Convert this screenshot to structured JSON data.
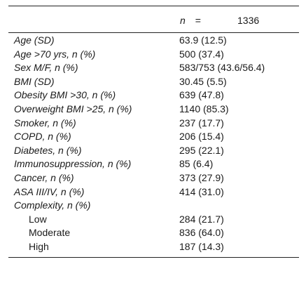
{
  "header": {
    "n_symbol": "n",
    "equals": "=",
    "n_value": "1336"
  },
  "rows": [
    {
      "label": "Age (SD)",
      "value": "63.9 (12.5)"
    },
    {
      "label": "Age >70 yrs, n (%)",
      "value": "500 (37.4)"
    },
    {
      "label": "Sex M/F, n (%)",
      "value": "583/753 (43.6/56.4)"
    },
    {
      "label": "BMI (SD)",
      "value": "30.45 (5.5)"
    },
    {
      "label": "Obesity BMI >30, n (%)",
      "value": "639 (47.8)"
    },
    {
      "label": "Overweight BMI >25, n (%)",
      "value": "1140 (85.3)"
    },
    {
      "label": "Smoker, n (%)",
      "value": "237 (17.7)"
    },
    {
      "label": "COPD, n (%)",
      "value": "206 (15.4)"
    },
    {
      "label": "Diabetes, n (%)",
      "value": "295 (22.1)"
    },
    {
      "label": "Immunosuppression, n (%)",
      "value": "85 (6.4)"
    },
    {
      "label": "Cancer, n (%)",
      "value": "373 (27.9)"
    },
    {
      "label": "ASA III/IV, n (%)",
      "value": "414 (31.0)"
    },
    {
      "label": "Complexity, n (%)",
      "value": ""
    }
  ],
  "complexity_rows": [
    {
      "label": "Low",
      "value": "284 (21.7)"
    },
    {
      "label": "Moderate",
      "value": "836 (64.0)"
    },
    {
      "label": "High",
      "value": "187 (14.3)"
    }
  ]
}
